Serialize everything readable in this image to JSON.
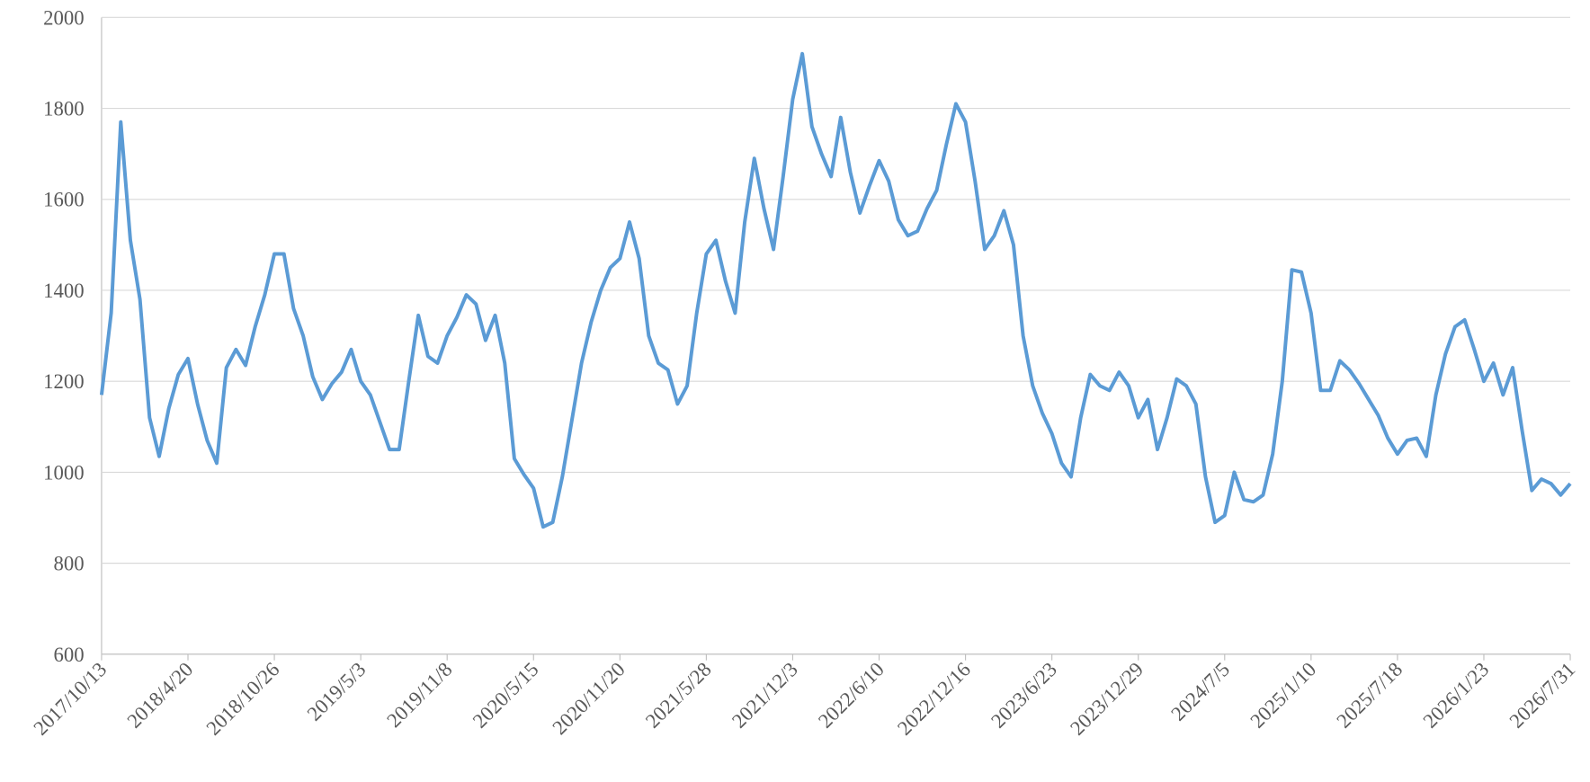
{
  "chart_data": {
    "type": "line",
    "categories": [
      "2017/10/13",
      null,
      null,
      null,
      null,
      null,
      null,
      null,
      null,
      "2018/4/20",
      null,
      null,
      null,
      null,
      null,
      null,
      null,
      null,
      "2018/10/26",
      null,
      null,
      null,
      null,
      null,
      null,
      null,
      null,
      "2019/5/3",
      null,
      null,
      null,
      null,
      null,
      null,
      null,
      null,
      "2019/11/8",
      null,
      null,
      null,
      null,
      null,
      null,
      null,
      null,
      "2020/5/15",
      null,
      null,
      null,
      null,
      null,
      null,
      null,
      null,
      "2020/11/20",
      null,
      null,
      null,
      null,
      null,
      null,
      null,
      null,
      "2021/5/28",
      null,
      null,
      null,
      null,
      null,
      null,
      null,
      null,
      "2021/12/3",
      null,
      null,
      null,
      null,
      null,
      null,
      null,
      null,
      "2022/6/10",
      null,
      null,
      null,
      null,
      null,
      null,
      null,
      null,
      "2022/12/16",
      null,
      null,
      null,
      null,
      null,
      null,
      null,
      null,
      "2023/6/23",
      null,
      null,
      null,
      null,
      null,
      null,
      null,
      null,
      "2023/12/29",
      null,
      null,
      null,
      null,
      null,
      null,
      null,
      null,
      "2024/7/5",
      null,
      null,
      null,
      null,
      null,
      null,
      null,
      null,
      "2025/1/10",
      null,
      null,
      null,
      null,
      null,
      null,
      null,
      null,
      "2025/7/18",
      null,
      null,
      null,
      null,
      null,
      null,
      null,
      null,
      "2026/1/23",
      null,
      null,
      null,
      null,
      null,
      null,
      null,
      null,
      "2026/7/31"
    ],
    "series": [
      {
        "name": null,
        "color": "#5b9bd5",
        "values": [
          1170,
          1350,
          1770,
          1510,
          1380,
          1120,
          1035,
          1140,
          1215,
          1250,
          1150,
          1070,
          1020,
          1230,
          1270,
          1235,
          1320,
          1390,
          1480,
          1480,
          1360,
          1300,
          1210,
          1160,
          1195,
          1220,
          1270,
          1200,
          1170,
          1110,
          1050,
          1050,
          1200,
          1345,
          1255,
          1240,
          1300,
          1340,
          1390,
          1370,
          1290,
          1345,
          1240,
          1030,
          995,
          965,
          880,
          890,
          990,
          1115,
          1240,
          1330,
          1400,
          1450,
          1470,
          1550,
          1470,
          1300,
          1240,
          1225,
          1150,
          1190,
          1350,
          1480,
          1510,
          1420,
          1350,
          1550,
          1690,
          1580,
          1490,
          1650,
          1820,
          1920,
          1760,
          1700,
          1650,
          1780,
          1660,
          1570,
          1630,
          1685,
          1640,
          1555,
          1520,
          1530,
          1580,
          1620,
          1720,
          1810,
          1770,
          1640,
          1490,
          1520,
          1575,
          1500,
          1300,
          1190,
          1130,
          1085,
          1020,
          990,
          1120,
          1215,
          1190,
          1180,
          1220,
          1190,
          1120,
          1160,
          1050,
          1120,
          1205,
          1190,
          1150,
          990,
          890,
          905,
          1000,
          940,
          935,
          950,
          1040,
          1200,
          1445,
          1440,
          1350,
          1180,
          1180,
          1245,
          1225,
          1195,
          1160,
          1125,
          1075,
          1040,
          1070,
          1075,
          1035,
          1170,
          1260,
          1320,
          1335,
          1270,
          1200,
          1240,
          1170,
          1230,
          1090,
          960,
          985,
          975,
          950,
          975
        ]
      }
    ],
    "ylim": [
      600,
      2000
    ],
    "yticks": [
      600,
      800,
      1000,
      1200,
      1400,
      1600,
      1800,
      2000
    ],
    "grid": true
  }
}
